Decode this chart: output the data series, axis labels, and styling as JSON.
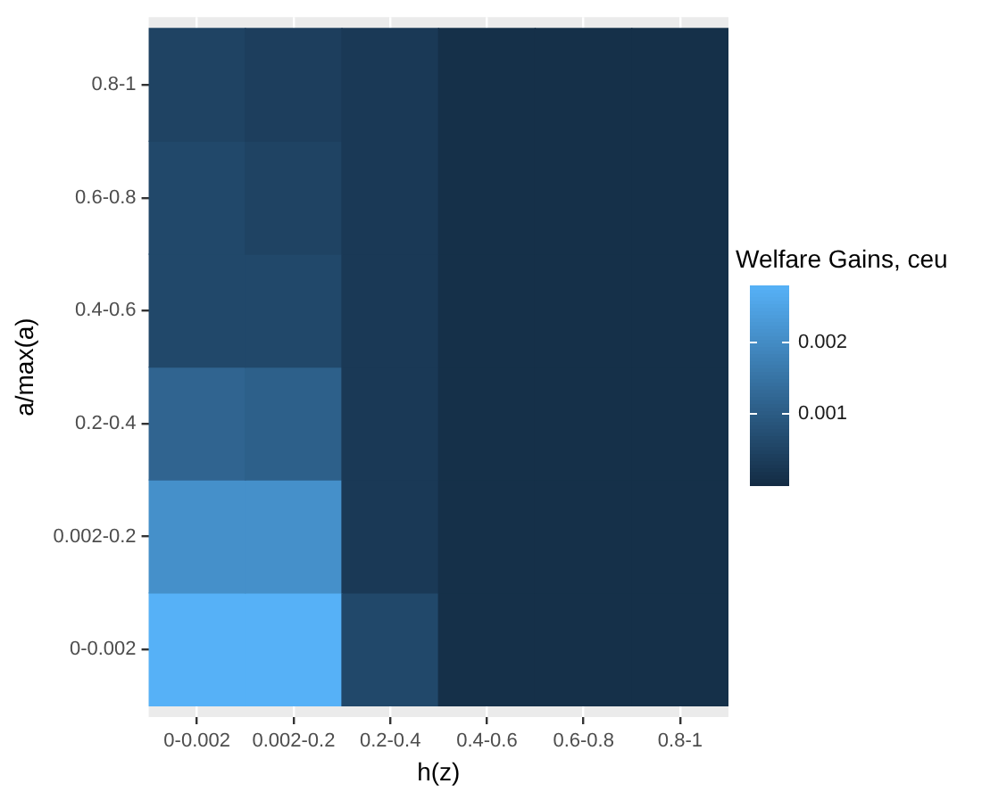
{
  "chart_data": {
    "type": "heatmap",
    "xlabel": "h(z)",
    "ylabel": "a/max(a)",
    "legend_title": "Welfare Gains, ceu",
    "categories": [
      "0-0.002",
      "0.002-0.2",
      "0.2-0.4",
      "0.4-0.6",
      "0.6-0.8",
      "0.8-1"
    ],
    "y_categories": [
      "0.8-1",
      "0.6-0.8",
      "0.4-0.6",
      "0.2-0.4",
      "0.002-0.2",
      "0-0.002"
    ],
    "cells": [
      [
        0.0005,
        0.0004,
        0.0003,
        0.0001,
        0.0001,
        0.0001
      ],
      [
        0.0006,
        0.0005,
        0.0003,
        0.0001,
        0.0001,
        0.0001
      ],
      [
        0.0006,
        0.0006,
        0.0003,
        0.0001,
        0.0001,
        0.0001
      ],
      [
        0.0012,
        0.0011,
        0.0003,
        0.0001,
        0.0001,
        0.0001
      ],
      [
        0.0021,
        0.0021,
        0.0003,
        0.0001,
        0.0001,
        0.0001
      ],
      [
        0.0028,
        0.0028,
        0.0006,
        0.0001,
        0.0001,
        0.0001
      ]
    ],
    "colors": [
      "#132b43",
      "#56b1f7"
    ],
    "clim": [
      0,
      0.0028
    ],
    "cticks": [
      0.001,
      0.002
    ],
    "grid": true
  }
}
